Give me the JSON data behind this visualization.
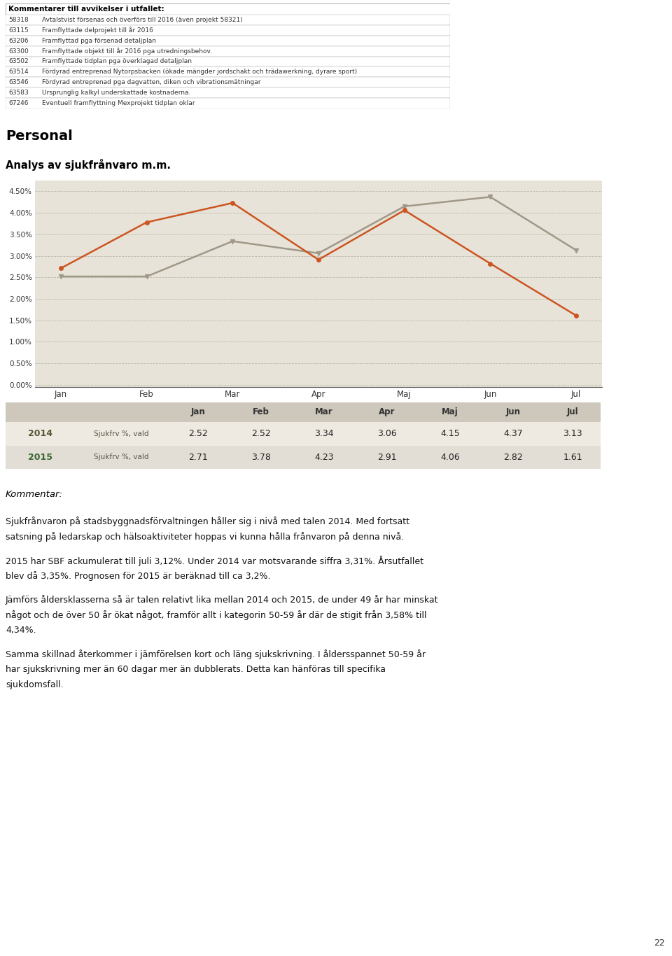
{
  "table1_title": "Kommentarer till avvikelser i utfallet:",
  "table1_rows": [
    [
      "58318",
      "Avtalstvist försenas och överförs till 2016 (även projekt 58321)"
    ],
    [
      "63115",
      "Framflyttade delprojekt till år 2016"
    ],
    [
      "63206",
      "Framflyttad pga försenad detaljplan"
    ],
    [
      "63300",
      "Framflyttade objekt till år 2016 pga utredningsbehov."
    ],
    [
      "63502",
      "Framflyttade tidplan pga överklagad detaljplan"
    ],
    [
      "63514",
      "Fördyrad entreprenad Nytorpsbacken (ökade mängder jordschakt och trädawerkning, dyrare sport)"
    ],
    [
      "63546",
      "Fördyrad entreprenad pga dagvatten, diken och vibrationsmätningar"
    ],
    [
      "63583",
      "Ursprunglig kalkyl underskattade kostnaderna."
    ],
    [
      "67246",
      "Eventuell framflyttning Mexprojekt tidplan oklar"
    ]
  ],
  "section_title": "Personal",
  "chart_title": "Analys av sjukfrånvaro m.m.",
  "months": [
    "Jan",
    "Feb",
    "Mar",
    "Apr",
    "Maj",
    "Jun",
    "Jul"
  ],
  "data_2014": [
    2.52,
    2.52,
    3.34,
    3.06,
    4.15,
    4.37,
    3.13
  ],
  "data_2015": [
    2.71,
    3.78,
    4.23,
    2.91,
    4.06,
    2.82,
    1.61
  ],
  "color_2014": "#a09888",
  "color_2015": "#cc5522",
  "yticks": [
    0.0,
    0.5,
    1.0,
    1.5,
    2.0,
    2.5,
    3.0,
    3.5,
    4.0,
    4.5
  ],
  "ytick_labels": [
    "0.00%",
    "0.50%",
    "1.00%",
    "1.50%",
    "2.00%",
    "2.50%",
    "3.00%",
    "3.50%",
    "4.00%",
    "4.50%"
  ],
  "chart_bg": "#e8e3d8",
  "table2_row1_year": "2014",
  "table2_row1_label": "Sjukfrv %, vald",
  "table2_row1_vals": [
    2.52,
    2.52,
    3.34,
    3.06,
    4.15,
    4.37,
    3.13
  ],
  "table2_row2_year": "2015",
  "table2_row2_label": "Sjukfrv %, vald",
  "table2_row2_vals": [
    2.71,
    3.78,
    4.23,
    2.91,
    4.06,
    2.82,
    1.61
  ],
  "header_bg": "#cdc8bb",
  "row1_bg": "#eeeae2",
  "row2_bg": "#e2ded6",
  "kommentar_title": "Kommentar:",
  "para1": "Sjukfrånvaron på stadsbyggnadsförvaltningen håller sig i nivå med talen 2014. Med fortsatt satsning på ledarskap och hälsoaktiviteter hoppas vi kunna hålla frånvaron på denna nivå.",
  "para2": "2015 har SBF ackumulerat till juli 3,12%. Under 2014 var motsvarande siffra 3,31%. Årsutfallet blev då 3,35%. Prognosen för 2015 är beräknad till ca 3,2%.",
  "para3": "Jämförs åldersklasserna så är talen relativt lika mellan 2014 och 2015, de under 49 år har minskat något och de över 50 år ökat något, framför allt i kategorin 50-59 år där de stigit från 3,58% till 4,34%.",
  "para4": "Samma skillnad återkommer i jämförelsen kort och läng sjukskrivning. I åldersspannet 50-59 år har sjukskrivning mer än 60 dagar mer än dubblerats. Detta kan hänföras till specifika sjukdomsfall.",
  "page_number": "22"
}
